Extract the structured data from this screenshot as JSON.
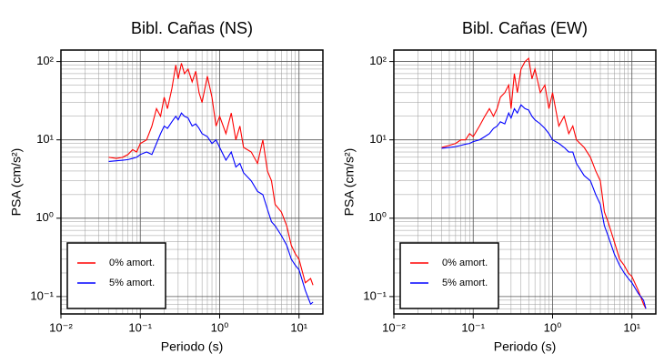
{
  "chart_data": [
    {
      "type": "line",
      "title": "Bibl. Cañas (NS)",
      "xlabel": "Periodo (s)",
      "ylabel": "PSA (cm/s²)",
      "log_x": true,
      "log_y": true,
      "grid": true,
      "legend": "lower left",
      "xlim": [
        0.01,
        20
      ],
      "ylim": [
        0.06,
        140
      ],
      "xticks": [
        {
          "value": 0.01,
          "label": "10⁻²"
        },
        {
          "value": 0.1,
          "label": "10⁻¹"
        },
        {
          "value": 1,
          "label": "10⁰"
        },
        {
          "value": 10,
          "label": "10¹"
        }
      ],
      "yticks": [
        {
          "value": 0.1,
          "label": "10⁻¹"
        },
        {
          "value": 1,
          "label": "10⁰"
        },
        {
          "value": 10,
          "label": "10¹"
        },
        {
          "value": 100,
          "label": "10²"
        }
      ],
      "x": [
        0.04,
        0.05,
        0.06,
        0.07,
        0.08,
        0.09,
        0.1,
        0.12,
        0.14,
        0.16,
        0.18,
        0.2,
        0.22,
        0.25,
        0.28,
        0.3,
        0.33,
        0.36,
        0.4,
        0.45,
        0.5,
        0.55,
        0.6,
        0.7,
        0.8,
        0.9,
        1.0,
        1.2,
        1.4,
        1.6,
        1.8,
        2.0,
        2.5,
        3.0,
        3.5,
        4.0,
        4.5,
        5.0,
        6.0,
        7.0,
        8.0,
        9.0,
        10,
        12,
        14,
        15
      ],
      "series": [
        {
          "name": "0% amort.",
          "color": "#ff0000",
          "values": [
            6,
            5.8,
            6,
            6.5,
            7.5,
            7,
            9,
            10,
            15,
            25,
            20,
            35,
            25,
            45,
            90,
            60,
            95,
            70,
            80,
            55,
            75,
            40,
            30,
            65,
            35,
            15,
            20,
            12,
            22,
            10,
            15,
            8,
            7,
            5,
            10,
            4,
            3,
            1.5,
            1.2,
            0.8,
            0.45,
            0.35,
            0.3,
            0.15,
            0.17,
            0.14
          ]
        },
        {
          "name": "5% amort.",
          "color": "#0000ff",
          "values": [
            5.3,
            5.4,
            5.5,
            5.6,
            5.8,
            6,
            6.5,
            7,
            6.5,
            9,
            12,
            15,
            14,
            17,
            20,
            18,
            22,
            20,
            19,
            15,
            16,
            14,
            12,
            11,
            9,
            10,
            8,
            5.5,
            7,
            4.5,
            5,
            3.8,
            3,
            2.2,
            2,
            1.3,
            0.9,
            0.8,
            0.6,
            0.45,
            0.3,
            0.25,
            0.22,
            0.12,
            0.08,
            0.085
          ]
        }
      ]
    },
    {
      "type": "line",
      "title": "Bibl. Cañas (EW)",
      "xlabel": "Periodo (s)",
      "ylabel": "PSA (cm/s²)",
      "log_x": true,
      "log_y": true,
      "grid": true,
      "legend": "lower left",
      "xlim": [
        0.01,
        20
      ],
      "ylim": [
        0.06,
        140
      ],
      "xticks": [
        {
          "value": 0.01,
          "label": "10⁻²"
        },
        {
          "value": 0.1,
          "label": "10⁻¹"
        },
        {
          "value": 1,
          "label": "10⁰"
        },
        {
          "value": 10,
          "label": "10¹"
        }
      ],
      "yticks": [
        {
          "value": 0.1,
          "label": "10⁻¹"
        },
        {
          "value": 1,
          "label": "10⁰"
        },
        {
          "value": 10,
          "label": "10¹"
        },
        {
          "value": 100,
          "label": "10²"
        }
      ],
      "x": [
        0.04,
        0.05,
        0.06,
        0.07,
        0.08,
        0.09,
        0.1,
        0.12,
        0.14,
        0.16,
        0.18,
        0.2,
        0.22,
        0.25,
        0.28,
        0.3,
        0.33,
        0.36,
        0.4,
        0.45,
        0.5,
        0.55,
        0.6,
        0.7,
        0.8,
        0.9,
        1.0,
        1.2,
        1.4,
        1.6,
        1.8,
        2.0,
        2.5,
        3.0,
        3.5,
        4.0,
        4.5,
        5.0,
        6.0,
        7.0,
        8.0,
        9.0,
        10,
        12,
        14,
        15
      ],
      "series": [
        {
          "name": "0% amort.",
          "color": "#ff0000",
          "values": [
            8,
            8.5,
            9,
            10,
            10,
            12,
            11,
            15,
            20,
            25,
            20,
            25,
            35,
            40,
            50,
            25,
            70,
            40,
            80,
            100,
            110,
            60,
            80,
            40,
            50,
            25,
            40,
            15,
            20,
            12,
            15,
            10,
            8,
            6,
            4,
            3,
            1.2,
            0.9,
            0.5,
            0.3,
            0.25,
            0.2,
            0.18,
            0.12,
            0.08,
            0.07
          ]
        },
        {
          "name": "5% amort.",
          "color": "#0000ff",
          "values": [
            7.8,
            8,
            8.2,
            8.5,
            8.8,
            9,
            9.5,
            10,
            11,
            12,
            14,
            15,
            17,
            16,
            22,
            19,
            25,
            22,
            28,
            25,
            24,
            20,
            18,
            16,
            14,
            12,
            10,
            9,
            8,
            7,
            7,
            5,
            3.5,
            3,
            2,
            1.5,
            0.8,
            0.6,
            0.35,
            0.25,
            0.2,
            0.17,
            0.15,
            0.11,
            0.09,
            0.07
          ]
        }
      ]
    }
  ]
}
